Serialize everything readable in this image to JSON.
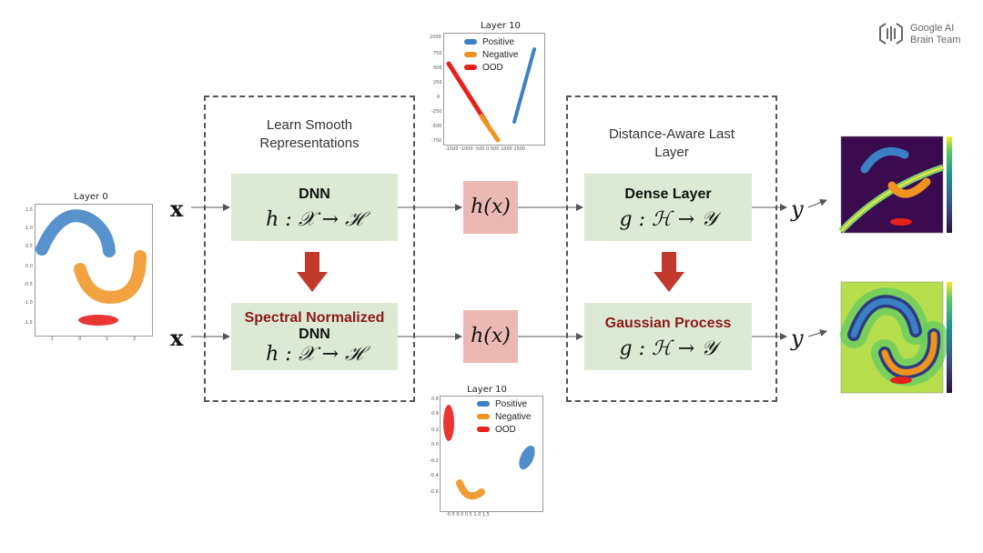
{
  "logo": {
    "line1": "Google AI",
    "line2": "Brain Team"
  },
  "plots": {
    "layer0_title": "Layer 0",
    "top_title": "Layer 10",
    "bottom_title": "Layer 10",
    "legend": [
      "Positive",
      "Negative",
      "OOD"
    ]
  },
  "left_box": {
    "title_line1": "Learn Smooth",
    "title_line2": "Representations"
  },
  "right_box": {
    "title_line1": "Distance-Aware Last",
    "title_line2": "Layer"
  },
  "blocks": {
    "dnn_label": "DNN",
    "dnn_math": "h : 𝒳 → ℋ",
    "sn_label_line1": "Spectral Normalized",
    "sn_label_line2": "DNN",
    "sn_math": "h : 𝒳 → ℋ",
    "dense_label": "Dense Layer",
    "dense_math": "g : ℋ → 𝒴",
    "gp_label": "Gaussian Process",
    "gp_math": "g : ℋ → 𝒴",
    "hx": "h(x)"
  },
  "symbols": {
    "x": "x",
    "y": "y"
  },
  "colors": {
    "positive": "#3b7fc4",
    "negative": "#f0921e",
    "ood": "#e8201c",
    "arrow": "#c0392b",
    "green_box": "#dcead5",
    "pink_box": "#ebb8b3"
  }
}
